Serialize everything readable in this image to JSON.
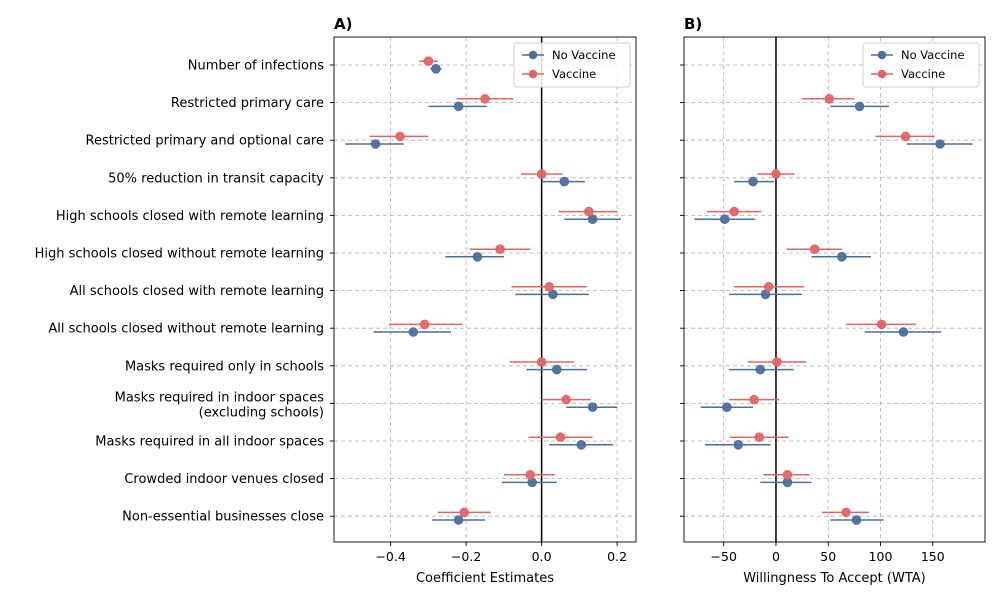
{
  "chart_data": [
    {
      "type": "scatter",
      "panel_title": "A)",
      "xlabel": "Coefficient Estimates",
      "ylabel": "",
      "xlim": [
        -0.55,
        0.25
      ],
      "xticks": [
        -0.4,
        -0.2,
        0.0,
        0.2
      ],
      "xtick_labels": [
        "−0.4",
        "−0.2",
        "0.0",
        "0.2"
      ],
      "reference_line": 0,
      "grid": true,
      "legend_position": "top-right",
      "categories": [
        "Number of infections",
        "Restricted primary care",
        "Restricted primary and optional care",
        "50% reduction in transit capacity",
        "High schools closed with remote learning",
        "High schools closed without remote learning",
        "All schools closed with remote learning",
        "All schools closed without remote learning",
        "Masks required only in schools",
        "Masks required in indoor spaces\n(excluding schools)",
        "Masks required in all indoor spaces",
        "Crowded indoor venues closed",
        "Non-essential businesses close"
      ],
      "series": [
        {
          "name": "No Vaccine",
          "color": "#4c6f9b",
          "values": [
            -0.28,
            -0.22,
            -0.44,
            0.06,
            0.135,
            -0.17,
            0.03,
            -0.34,
            0.04,
            0.135,
            0.105,
            -0.025,
            -0.22
          ],
          "ci_low": [
            -0.295,
            -0.3,
            -0.52,
            0.0,
            0.06,
            -0.255,
            -0.07,
            -0.445,
            -0.04,
            0.065,
            0.02,
            -0.105,
            -0.29
          ],
          "ci_high": [
            -0.265,
            -0.145,
            -0.365,
            0.115,
            0.21,
            -0.1,
            0.125,
            -0.24,
            0.12,
            0.2,
            0.19,
            0.04,
            -0.15
          ]
        },
        {
          "name": "Vaccine",
          "color": "#e06666",
          "values": [
            -0.3,
            -0.15,
            -0.375,
            0.0,
            0.125,
            -0.11,
            0.02,
            -0.31,
            0.0,
            0.065,
            0.05,
            -0.03,
            -0.205
          ],
          "ci_low": [
            -0.325,
            -0.225,
            -0.455,
            -0.055,
            0.045,
            -0.19,
            -0.08,
            -0.405,
            -0.085,
            0.0,
            -0.035,
            -0.1,
            -0.275
          ],
          "ci_high": [
            -0.275,
            -0.075,
            -0.3,
            0.055,
            0.2,
            -0.03,
            0.12,
            -0.21,
            0.085,
            0.13,
            0.135,
            0.035,
            -0.135
          ]
        }
      ]
    },
    {
      "type": "scatter",
      "panel_title": "B)",
      "xlabel": "Willingness To Accept (WTA)",
      "ylabel": "",
      "xlim": [
        -88,
        200
      ],
      "xticks": [
        -50,
        0,
        50,
        100,
        150
      ],
      "xtick_labels": [
        "−50",
        "0",
        "50",
        "100",
        "150"
      ],
      "reference_line": 0,
      "grid": true,
      "legend_position": "top-right",
      "categories": [
        "Number of infections",
        "Restricted primary care",
        "Restricted primary and optional care",
        "50% reduction in transit capacity",
        "High schools closed with remote learning",
        "High schools closed without remote learning",
        "All schools closed with remote learning",
        "All schools closed without remote learning",
        "Masks required only in schools",
        "Masks required in indoor spaces\n(excluding schools)",
        "Masks required in all indoor spaces",
        "Crowded indoor venues closed",
        "Non-essential businesses close"
      ],
      "series": [
        {
          "name": "No Vaccine",
          "color": "#4c6f9b",
          "values": [
            null,
            80,
            157,
            -22,
            -49,
            63,
            -10,
            122,
            -15,
            -47,
            -36,
            11,
            77
          ],
          "ci_low": [
            null,
            52,
            125,
            -40,
            -78,
            34,
            -45,
            85,
            -45,
            -72,
            -68,
            -15,
            52
          ],
          "ci_high": [
            null,
            108,
            188,
            -2,
            -20,
            91,
            25,
            158,
            17,
            -22,
            -5,
            34,
            103
          ]
        },
        {
          "name": "Vaccine",
          "color": "#e06666",
          "values": [
            null,
            51,
            124,
            0,
            -40,
            37,
            -7,
            101,
            1,
            -21,
            -16,
            11,
            67
          ],
          "ci_low": [
            null,
            25,
            95,
            -18,
            -66,
            10,
            -40,
            67,
            -27,
            -45,
            -44,
            -12,
            44
          ],
          "ci_high": [
            null,
            75,
            152,
            18,
            -14,
            63,
            27,
            134,
            29,
            3,
            12,
            32,
            89
          ]
        }
      ]
    }
  ]
}
